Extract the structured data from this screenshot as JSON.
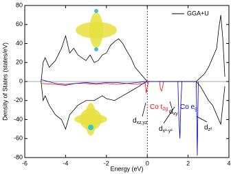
{
  "chart_data": {
    "type": "line",
    "xlabel": "Energy (eV)",
    "ylabel": "Density of States (states/eV)",
    "xlim": [
      -6,
      4
    ],
    "xticks": [
      -6,
      -4,
      -2,
      0,
      2,
      4
    ],
    "ylim": [
      -80,
      80
    ],
    "yticks": [
      -80,
      -60,
      -40,
      -20,
      0,
      20,
      40,
      60,
      80
    ],
    "legend": "upper right",
    "series": [
      {
        "name": "GGA+U",
        "color": "#000000",
        "x": [
          -5.2,
          -5.1,
          -5.0,
          -4.8,
          -4.5,
          -4.2,
          -4.0,
          -3.8,
          -3.6,
          -3.4,
          -3.2,
          -3.0,
          -2.8,
          -2.6,
          -2.4,
          -2.2,
          -2.0,
          -1.8,
          -1.6,
          -1.4,
          -1.2,
          -1.0,
          -0.8,
          -0.6,
          -0.4,
          -0.2,
          0,
          1.0,
          2.4,
          2.5,
          2.8,
          3.0,
          3.2,
          3.4,
          3.5,
          3.6,
          3.7,
          3.8
        ],
        "values": [
          0,
          20,
          25,
          15,
          22,
          35,
          48,
          30,
          35,
          28,
          25,
          22,
          28,
          20,
          22,
          28,
          30,
          38,
          42,
          45,
          40,
          32,
          25,
          15,
          10,
          5,
          0,
          0,
          0,
          2,
          8,
          15,
          25,
          35,
          55,
          70,
          45,
          5
        ]
      },
      {
        "name": null,
        "color": "#000000",
        "x": [
          -5.2,
          -5.1,
          -5.0,
          -4.8,
          -4.5,
          -4.2,
          -4.0,
          -3.8,
          -3.6,
          -3.4,
          -3.0,
          -2.6,
          -2.2,
          -2.0,
          -1.6,
          -1.2,
          -0.8,
          -0.4,
          -0.2,
          0,
          1.0,
          2.4,
          2.6,
          3.0,
          3.2,
          3.4,
          3.6,
          3.8
        ],
        "values": [
          0,
          -20,
          -15,
          -25,
          -35,
          -40,
          -50,
          -35,
          -30,
          -25,
          -20,
          -20,
          -15,
          -18,
          -20,
          -15,
          -10,
          -5,
          -2,
          0,
          0,
          0,
          -5,
          -20,
          -25,
          -35,
          -45,
          -5
        ]
      },
      {
        "name": null,
        "color": "#ff0000",
        "x": [
          -5.2,
          -4.5,
          -4,
          -3.5,
          -3,
          -2.5,
          -2,
          -1.5,
          -1,
          -0.5,
          -0.1,
          -0.05,
          0,
          0.05,
          0.1,
          0.6,
          0.65,
          0.7,
          0.75,
          0.8
        ],
        "values": [
          -2,
          -3,
          -4,
          -2,
          -2,
          -3,
          -2,
          -3,
          -2,
          -3,
          -2,
          -12,
          -6,
          -1,
          0,
          0,
          -8,
          -10,
          -6,
          0
        ]
      },
      {
        "name": null,
        "color": "#0000cc",
        "x": [
          -5.2,
          -4.5,
          -4,
          -3.5,
          -3,
          -2.5,
          -2,
          -1.5,
          -1,
          -0.5,
          0,
          1.5,
          1.55,
          1.6,
          1.65,
          1.7,
          2.4,
          2.45,
          2.5
        ],
        "values": [
          2,
          -2,
          -3,
          -2,
          -1,
          -2,
          -1,
          -1,
          -2,
          -1,
          0,
          0,
          -40,
          -60,
          -20,
          0,
          0,
          -78,
          0
        ]
      }
    ],
    "annotations": [
      {
        "text": "Co t",
        "sub": "2g",
        "color": "#ff0000"
      },
      {
        "text": "Co e",
        "sub": "g",
        "color": "#0000cc"
      },
      {
        "text": "d",
        "sub": "xz,yz",
        "color": "#000000"
      },
      {
        "text": "d",
        "sub": "xy",
        "color": "#000000"
      },
      {
        "text": "d",
        "sub": "x²-y²",
        "color": "#000000"
      },
      {
        "text": "d",
        "sub": "z²",
        "color": "#000000"
      }
    ]
  }
}
